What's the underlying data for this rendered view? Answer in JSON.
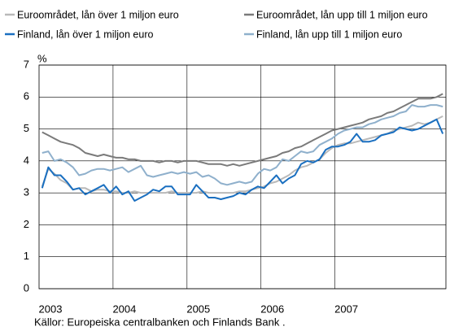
{
  "chart_data": {
    "type": "line",
    "y_label": "%",
    "source": "Källor: Europeiska centralbanken och Finlands Bank .",
    "categories": [
      "2003",
      null,
      null,
      null,
      null,
      null,
      null,
      null,
      null,
      null,
      null,
      null,
      "2004",
      null,
      null,
      null,
      null,
      null,
      null,
      null,
      null,
      null,
      null,
      null,
      "2005",
      null,
      null,
      null,
      null,
      null,
      null,
      null,
      null,
      null,
      null,
      null,
      "2006",
      null,
      null,
      null,
      null,
      null,
      null,
      null,
      null,
      null,
      null,
      null,
      "2007",
      null,
      null,
      null,
      null,
      null,
      null,
      null,
      null,
      null,
      null,
      null,
      null,
      null,
      null,
      null,
      null,
      null
    ],
    "ylim": [
      0,
      7
    ],
    "yticks": [
      0,
      1,
      2,
      3,
      4,
      5,
      6,
      7
    ],
    "grid": true,
    "series": [
      {
        "name": "Euroområdet, lån över 1 miljon euro",
        "color": "#b9b9b9",
        "values": [
          3.2,
          3.75,
          3.6,
          3.4,
          3.3,
          3.1,
          3.15,
          3.15,
          3.05,
          3.1,
          3.1,
          3.05,
          3.05,
          3.0,
          3.0,
          3.05,
          3.0,
          3.0,
          3.0,
          3.0,
          3.0,
          3.05,
          3.0,
          3.0,
          3.0,
          3.0,
          3.05,
          3.0,
          3.0,
          3.0,
          3.0,
          3.0,
          3.05,
          3.05,
          3.1,
          3.15,
          3.2,
          3.3,
          3.35,
          3.45,
          3.55,
          3.7,
          3.8,
          3.85,
          3.95,
          4.05,
          4.25,
          4.4,
          4.5,
          4.55,
          4.55,
          4.6,
          4.65,
          4.7,
          4.75,
          4.8,
          4.85,
          4.95,
          5.0,
          5.05,
          5.1,
          5.2,
          5.15,
          5.2,
          5.3,
          5.4
        ]
      },
      {
        "name": "Euroområdet, lån upp till 1 miljon euro",
        "color": "#7a7a7a",
        "values": [
          4.9,
          4.8,
          4.7,
          4.6,
          4.55,
          4.5,
          4.4,
          4.25,
          4.2,
          4.15,
          4.2,
          4.15,
          4.1,
          4.1,
          4.05,
          4.05,
          4.0,
          4.0,
          4.0,
          3.95,
          4.0,
          4.0,
          3.95,
          4.0,
          4.0,
          4.0,
          3.95,
          3.9,
          3.9,
          3.9,
          3.85,
          3.9,
          3.85,
          3.9,
          3.95,
          4.0,
          4.05,
          4.1,
          4.15,
          4.25,
          4.3,
          4.4,
          4.45,
          4.55,
          4.65,
          4.75,
          4.85,
          4.95,
          5.0,
          5.05,
          5.1,
          5.15,
          5.2,
          5.3,
          5.35,
          5.4,
          5.5,
          5.55,
          5.65,
          5.75,
          5.85,
          5.95,
          5.95,
          5.95,
          6.0,
          6.1
        ]
      },
      {
        "name": "Finland, lån över 1 miljon euro",
        "color": "#1a6fc0",
        "values": [
          3.15,
          3.8,
          3.55,
          3.55,
          3.35,
          3.1,
          3.15,
          2.95,
          3.05,
          3.15,
          3.25,
          3.0,
          3.2,
          2.95,
          3.05,
          2.75,
          2.85,
          2.95,
          3.1,
          3.05,
          3.2,
          3.2,
          2.95,
          2.95,
          2.95,
          3.25,
          3.05,
          2.85,
          2.85,
          2.8,
          2.85,
          2.9,
          3.0,
          2.95,
          3.1,
          3.2,
          3.15,
          3.35,
          3.55,
          3.3,
          3.45,
          3.55,
          3.9,
          4.0,
          3.95,
          4.05,
          4.35,
          4.45,
          4.45,
          4.5,
          4.6,
          4.85,
          4.6,
          4.6,
          4.65,
          4.8,
          4.85,
          4.9,
          5.05,
          5.0,
          4.95,
          5.0,
          5.1,
          5.2,
          5.3,
          4.85
        ]
      },
      {
        "name": "Finland, lån upp till 1 miljon euro",
        "color": "#8fb0cc",
        "values": [
          4.25,
          4.3,
          4.0,
          4.05,
          3.95,
          3.8,
          3.55,
          3.6,
          3.7,
          3.75,
          3.75,
          3.7,
          3.75,
          3.8,
          3.65,
          3.75,
          3.85,
          3.55,
          3.5,
          3.55,
          3.6,
          3.65,
          3.6,
          3.65,
          3.6,
          3.65,
          3.5,
          3.55,
          3.45,
          3.3,
          3.25,
          3.3,
          3.35,
          3.3,
          3.35,
          3.6,
          3.75,
          3.7,
          3.8,
          4.05,
          4.0,
          4.15,
          4.3,
          4.25,
          4.3,
          4.5,
          4.6,
          4.7,
          4.85,
          4.95,
          5.0,
          5.05,
          5.05,
          5.15,
          5.2,
          5.3,
          5.35,
          5.4,
          5.5,
          5.55,
          5.75,
          5.7,
          5.7,
          5.75,
          5.75,
          5.7
        ]
      }
    ]
  }
}
